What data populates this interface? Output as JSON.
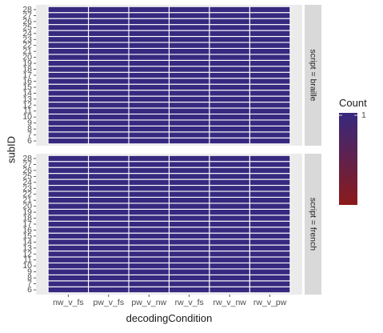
{
  "chart_data": {
    "type": "heatmap",
    "xlabel": "decodingCondition",
    "ylabel": "subID",
    "x_categories": [
      "nw_v_fs",
      "pw_v_fs",
      "pw_v_nw",
      "rw_v_fs",
      "rw_v_nw",
      "rw_v_pw"
    ],
    "y_categories": [
      "6",
      "7",
      "8",
      "9",
      "10",
      "11",
      "12",
      "13",
      "14",
      "15",
      "16",
      "17",
      "18",
      "19",
      "20",
      "21",
      "22",
      "23",
      "24",
      "25",
      "26",
      "27",
      "28"
    ],
    "facet_variable": "script",
    "facets": [
      {
        "strip_label": "script = braille",
        "value": 1
      },
      {
        "strip_label": "script = french",
        "value": 1
      }
    ],
    "fill": {
      "legend_title": "Count",
      "low_color": "#8b1a1a",
      "high_color": "#36297f",
      "tick_labels": [
        "1"
      ],
      "tick_values": [
        1
      ],
      "range": [
        0,
        1
      ]
    },
    "cell_value": 1,
    "cell_border_color": "#ffffff",
    "panel_background": "#ebebeb",
    "strip_background": "#d9d9d9",
    "grid": true,
    "legend_position": "right"
  }
}
